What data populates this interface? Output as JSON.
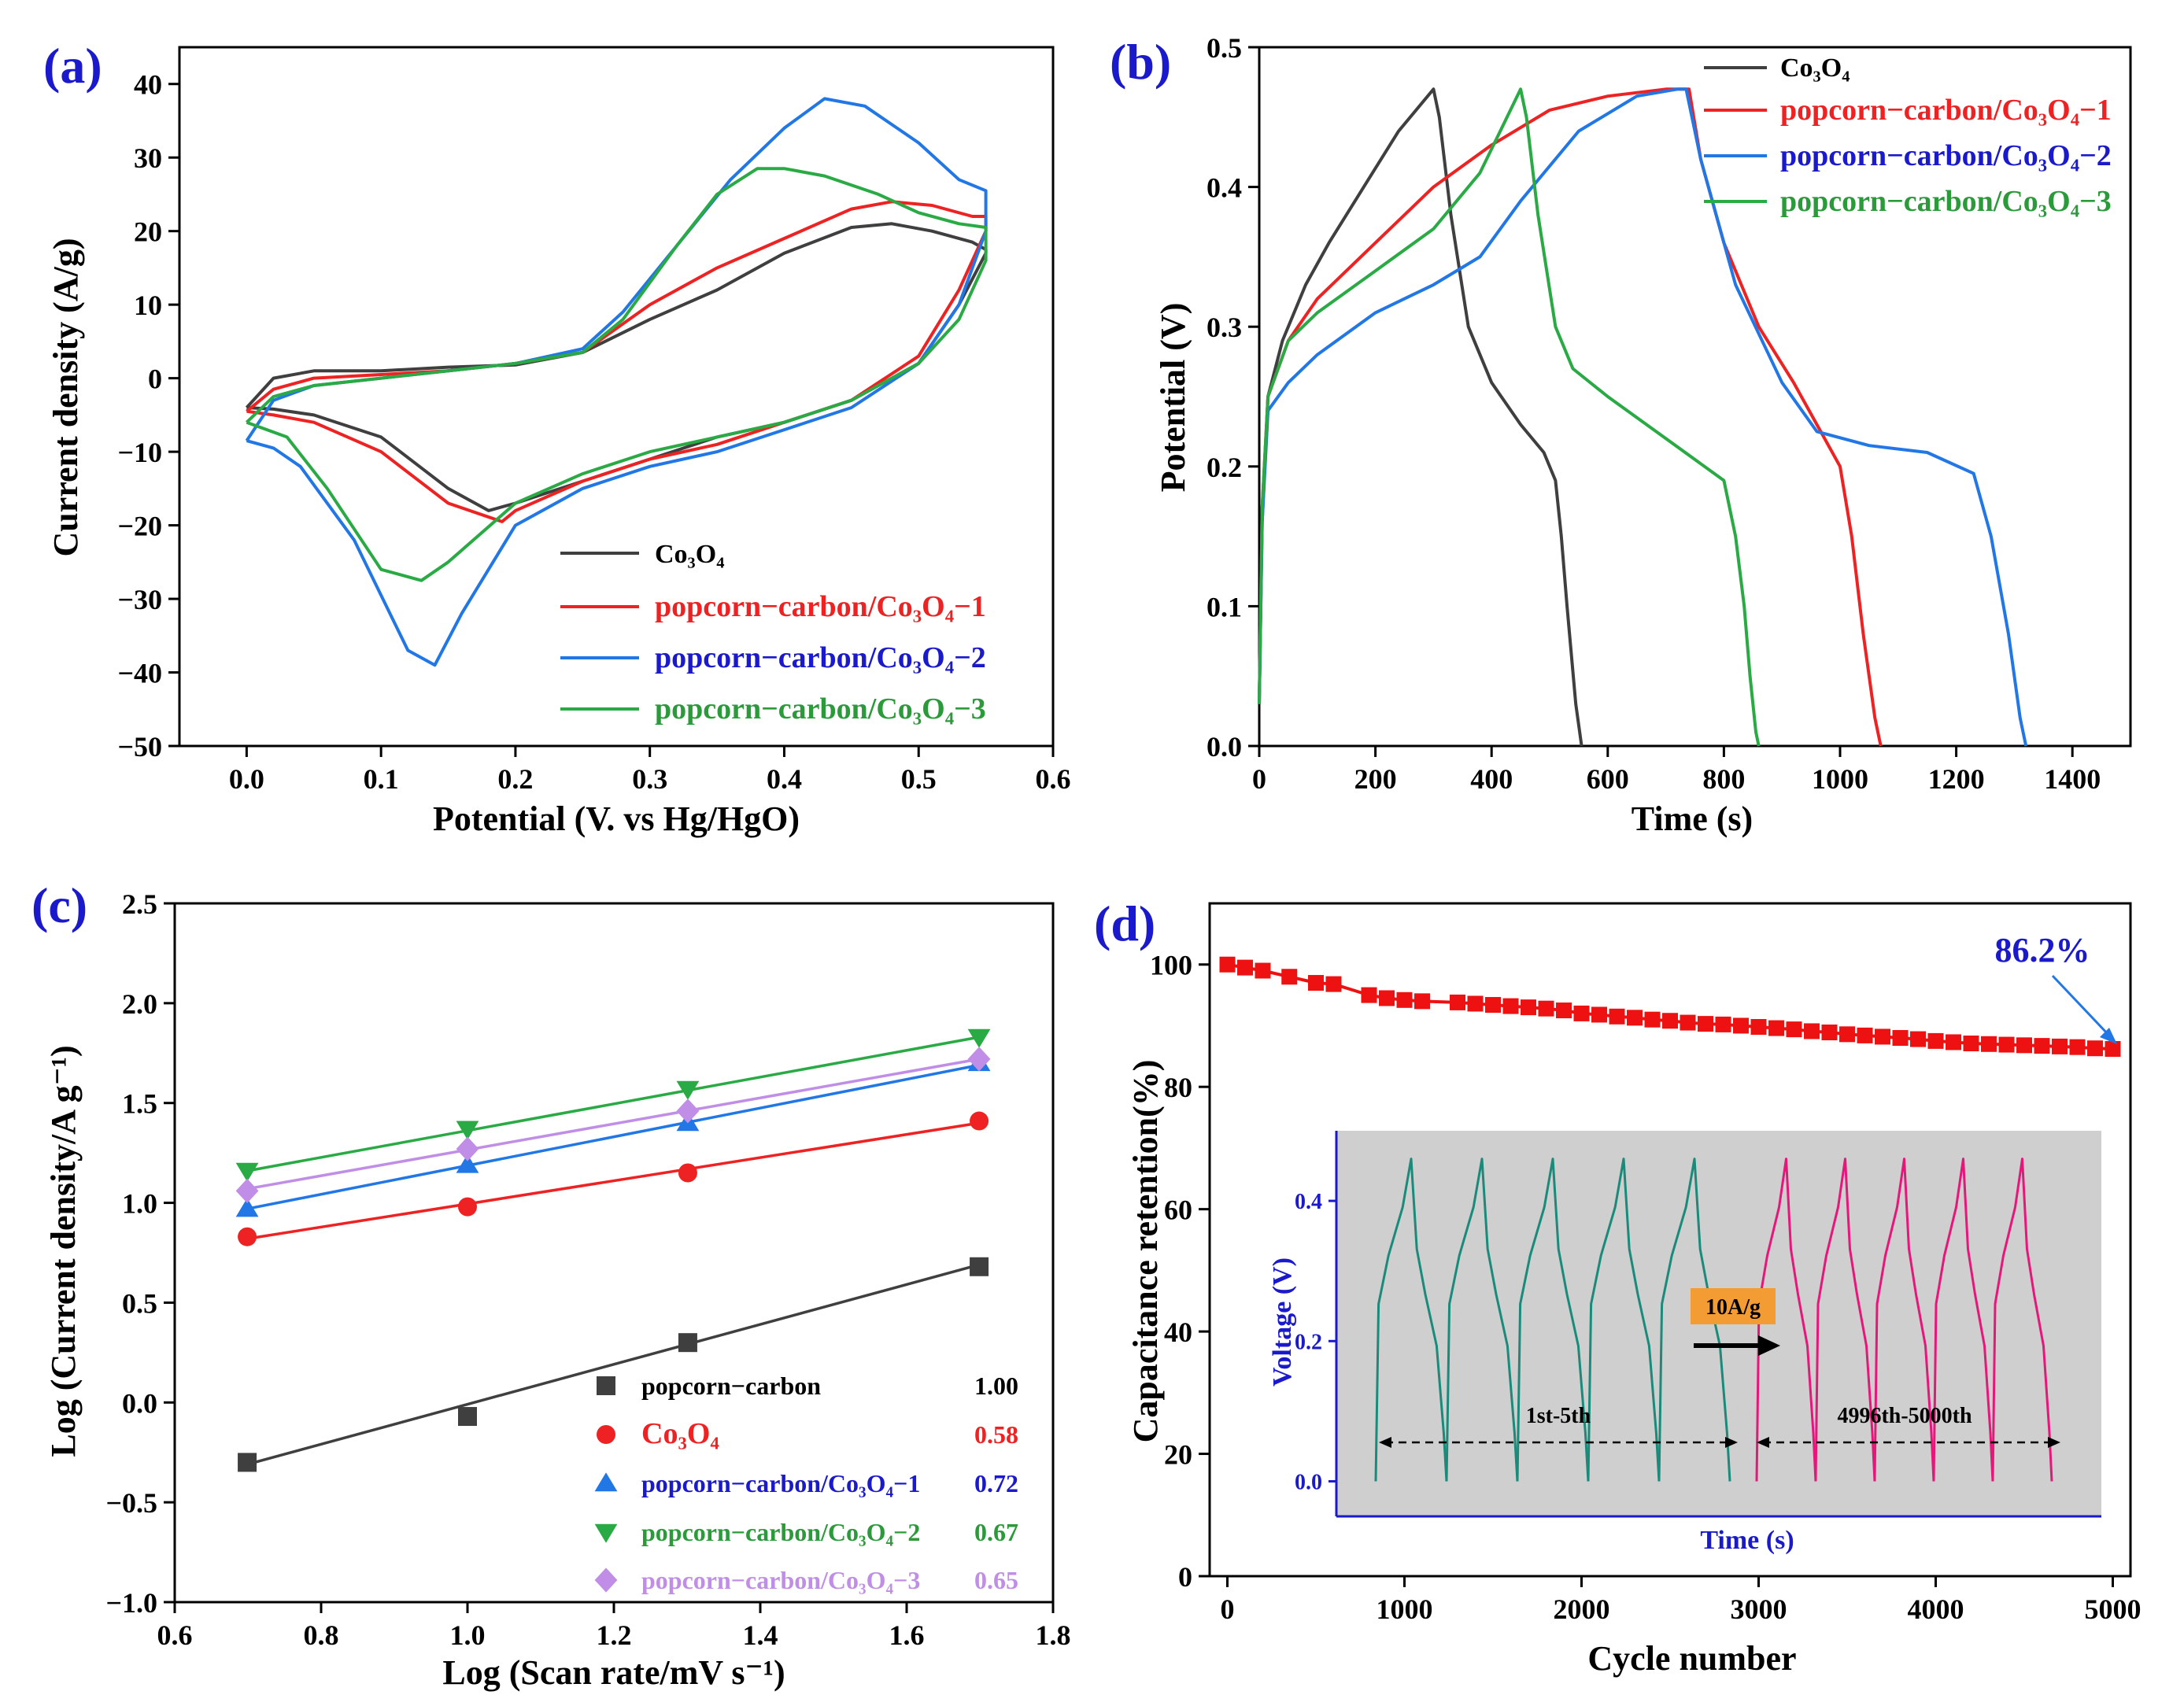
{
  "chart_data": [
    {
      "panel": "(a)",
      "type": "line",
      "xlabel": "Potential (V. vs Hg/HgO)",
      "ylabel": "Current density (A/g)",
      "xlim": [
        -0.05,
        0.6
      ],
      "ylim": [
        -50,
        45
      ],
      "xticks": [
        "0.0",
        "0.1",
        "0.2",
        "0.3",
        "0.4",
        "0.5",
        "0.6"
      ],
      "yticks": [
        "40",
        "30",
        "20",
        "10",
        "0",
        "−10",
        "−20",
        "−30",
        "−40",
        "−50"
      ],
      "legend": [
        {
          "name": "Co₃O₄",
          "color": "#3f3f3f"
        },
        {
          "name": "popcorn−carbon/Co₃O₄−1",
          "color": "#ee2222"
        },
        {
          "name": "popcorn−carbon/Co₃O₄−2",
          "color": "#2277e6"
        },
        {
          "name": "popcorn−carbon/Co₃O₄−3",
          "color": "#2aaa44"
        }
      ],
      "series": [
        {
          "name": "Co₃O₄",
          "color": "#3f3f3f",
          "x": [
            0.0,
            0.02,
            0.05,
            0.1,
            0.15,
            0.2,
            0.25,
            0.3,
            0.35,
            0.4,
            0.45,
            0.48,
            0.51,
            0.54,
            0.55,
            0.55,
            0.53,
            0.5,
            0.45,
            0.4,
            0.35,
            0.3,
            0.25,
            0.2,
            0.18,
            0.15,
            0.1,
            0.05,
            0.02,
            0.0
          ],
          "y": [
            -4,
            0,
            1,
            1,
            1.5,
            1.8,
            3.5,
            8,
            12,
            17,
            20.5,
            21,
            20,
            18.5,
            17.5,
            17,
            10,
            2,
            -3,
            -6,
            -8,
            -11,
            -14,
            -17,
            -18,
            -15,
            -8,
            -5,
            -4.2,
            -4
          ]
        },
        {
          "name": "popcorn−carbon/Co₃O₄−1",
          "color": "#ee2222",
          "x": [
            0.0,
            0.02,
            0.05,
            0.1,
            0.15,
            0.2,
            0.25,
            0.3,
            0.35,
            0.4,
            0.45,
            0.48,
            0.51,
            0.54,
            0.55,
            0.55,
            0.53,
            0.5,
            0.45,
            0.4,
            0.35,
            0.3,
            0.25,
            0.2,
            0.19,
            0.15,
            0.1,
            0.05,
            0.02,
            0.0
          ],
          "y": [
            -4.5,
            -1.5,
            0,
            0.5,
            1,
            2,
            3.5,
            10,
            15,
            19,
            23,
            24,
            23.5,
            22,
            22,
            20,
            12,
            3,
            -3,
            -6,
            -9,
            -11,
            -14,
            -18,
            -19.5,
            -17,
            -10,
            -6,
            -5,
            -4.5
          ]
        },
        {
          "name": "popcorn−carbon/Co₃O₄−2",
          "color": "#2277e6",
          "x": [
            0.0,
            0.02,
            0.05,
            0.1,
            0.15,
            0.2,
            0.25,
            0.28,
            0.32,
            0.36,
            0.4,
            0.43,
            0.46,
            0.5,
            0.53,
            0.55,
            0.55,
            0.53,
            0.5,
            0.45,
            0.4,
            0.35,
            0.3,
            0.25,
            0.2,
            0.16,
            0.14,
            0.12,
            0.08,
            0.04,
            0.02,
            0.0
          ],
          "y": [
            -8.5,
            -3,
            -1,
            0,
            1,
            2,
            4,
            9,
            18,
            27,
            34,
            38,
            37,
            32,
            27,
            25.5,
            20,
            10,
            2,
            -4,
            -7,
            -10,
            -12,
            -15,
            -20,
            -32,
            -39,
            -37,
            -22,
            -12,
            -9.5,
            -8.5
          ]
        },
        {
          "name": "popcorn−carbon/Co₃O₄−3",
          "color": "#2aaa44",
          "x": [
            0.0,
            0.02,
            0.05,
            0.1,
            0.15,
            0.2,
            0.25,
            0.28,
            0.32,
            0.35,
            0.38,
            0.4,
            0.43,
            0.47,
            0.5,
            0.53,
            0.55,
            0.55,
            0.53,
            0.5,
            0.45,
            0.4,
            0.35,
            0.3,
            0.25,
            0.2,
            0.15,
            0.13,
            0.1,
            0.06,
            0.03,
            0.0
          ],
          "y": [
            -6,
            -2.5,
            -1,
            0,
            1,
            2,
            3.5,
            8,
            18,
            25,
            28.5,
            28.5,
            27.5,
            25,
            22.5,
            21,
            20.5,
            16,
            8,
            2,
            -3,
            -6,
            -8,
            -10,
            -13,
            -17,
            -25,
            -27.5,
            -26,
            -15,
            -8,
            -6
          ]
        }
      ]
    },
    {
      "panel": "(b)",
      "type": "line",
      "xlabel": "Time (s)",
      "ylabel": "Potential (V)",
      "xlim": [
        0,
        1500
      ],
      "ylim": [
        0,
        0.5
      ],
      "xticks": [
        "0",
        "200",
        "400",
        "600",
        "800",
        "1000",
        "1200",
        "1400"
      ],
      "yticks": [
        "0.5",
        "0.4",
        "0.3",
        "0.2",
        "0.1",
        "0.0"
      ],
      "legend": [
        {
          "name": "Co₃O₄",
          "color": "#3f3f3f"
        },
        {
          "name": "popcorn−carbon/Co₃O₄−1",
          "color": "#ee2222"
        },
        {
          "name": "popcorn−carbon/Co₃O₄−2",
          "color": "#2277e6"
        },
        {
          "name": "popcorn−carbon/Co₃O₄−3",
          "color": "#2aaa44"
        }
      ],
      "series": [
        {
          "name": "Co₃O₄",
          "color": "#3f3f3f",
          "x": [
            0,
            5,
            15,
            40,
            80,
            120,
            180,
            240,
            300,
            310,
            330,
            360,
            400,
            450,
            490,
            510,
            520,
            530,
            545,
            555
          ],
          "y": [
            0.03,
            0.16,
            0.25,
            0.29,
            0.33,
            0.36,
            0.4,
            0.44,
            0.47,
            0.45,
            0.38,
            0.3,
            0.26,
            0.23,
            0.21,
            0.19,
            0.15,
            0.1,
            0.03,
            0.0
          ]
        },
        {
          "name": "popcorn−carbon/Co₃O₄−1",
          "color": "#ee2222",
          "x": [
            0,
            5,
            15,
            50,
            100,
            200,
            300,
            400,
            500,
            600,
            700,
            740,
            760,
            800,
            860,
            920,
            960,
            1000,
            1020,
            1040,
            1060,
            1070
          ],
          "y": [
            0.03,
            0.17,
            0.25,
            0.29,
            0.32,
            0.36,
            0.4,
            0.43,
            0.455,
            0.465,
            0.47,
            0.47,
            0.42,
            0.36,
            0.3,
            0.26,
            0.23,
            0.2,
            0.15,
            0.08,
            0.02,
            0.0
          ]
        },
        {
          "name": "popcorn−carbon/Co₃O₄−2",
          "color": "#2277e6",
          "x": [
            0,
            5,
            15,
            50,
            100,
            200,
            300,
            380,
            450,
            550,
            650,
            720,
            735,
            760,
            820,
            900,
            960,
            1050,
            1150,
            1230,
            1260,
            1290,
            1310,
            1320
          ],
          "y": [
            0.03,
            0.16,
            0.24,
            0.26,
            0.28,
            0.31,
            0.33,
            0.35,
            0.39,
            0.44,
            0.465,
            0.47,
            0.47,
            0.42,
            0.33,
            0.26,
            0.225,
            0.215,
            0.21,
            0.195,
            0.15,
            0.08,
            0.02,
            0.0
          ]
        },
        {
          "name": "popcorn−carbon/Co₃O₄−3",
          "color": "#2aaa44",
          "x": [
            0,
            5,
            15,
            50,
            100,
            200,
            300,
            380,
            450,
            460,
            480,
            510,
            540,
            600,
            700,
            800,
            820,
            835,
            845,
            855,
            860
          ],
          "y": [
            0.03,
            0.17,
            0.25,
            0.29,
            0.31,
            0.34,
            0.37,
            0.41,
            0.47,
            0.45,
            0.38,
            0.3,
            0.27,
            0.25,
            0.22,
            0.19,
            0.15,
            0.1,
            0.05,
            0.01,
            0.0
          ]
        }
      ]
    },
    {
      "panel": "(c)",
      "type": "scatter",
      "xlabel": "Log (Scan rate/mV s⁻¹)",
      "ylabel": "Log (Current density/A g⁻¹)",
      "xlim": [
        0.6,
        1.8
      ],
      "ylim": [
        -1.0,
        2.5
      ],
      "xticks": [
        "0.6",
        "0.8",
        "1.0",
        "1.2",
        "1.4",
        "1.6",
        "1.8"
      ],
      "yticks": [
        "2.5",
        "2.0",
        "1.5",
        "1.0",
        "0.5",
        "0.0",
        "−0.5",
        "−1.0"
      ],
      "x": [
        0.699,
        1.0,
        1.301,
        1.699
      ],
      "series": [
        {
          "name": "popcorn−carbon",
          "slope": "1.00",
          "color": "#3f3f3f",
          "marker": "square",
          "values": [
            -0.3,
            -0.07,
            0.3,
            0.68
          ],
          "fit": [
            -0.31,
            0.69
          ]
        },
        {
          "name": "Co₃O₄",
          "slope": "0.58",
          "color": "#ee2222",
          "marker": "circle",
          "values": [
            0.83,
            0.98,
            1.15,
            1.41
          ],
          "fit": [
            0.82,
            1.4
          ]
        },
        {
          "name": "popcorn−carbon/Co₃O₄−1",
          "slope": "0.72",
          "color": "#2277e6",
          "marker": "triangle-up",
          "values": [
            0.97,
            1.19,
            1.4,
            1.7
          ],
          "fit": [
            0.97,
            1.69
          ]
        },
        {
          "name": "popcorn−carbon/Co₃O₄−2",
          "slope": "0.67",
          "color": "#2aaa44",
          "marker": "triangle-down",
          "values": [
            1.16,
            1.37,
            1.57,
            1.83
          ],
          "fit": [
            1.16,
            1.83
          ]
        },
        {
          "name": "popcorn−carbon/Co₃O₄−3",
          "slope": "0.65",
          "color": "#c08ee6",
          "marker": "diamond",
          "values": [
            1.06,
            1.27,
            1.46,
            1.72
          ],
          "fit": [
            1.07,
            1.72
          ]
        }
      ]
    },
    {
      "panel": "(d)",
      "type": "line",
      "xlabel": "Cycle number",
      "ylabel": "Capacitance retention(%)",
      "xlim": [
        -100,
        5100
      ],
      "ylim": [
        0,
        110
      ],
      "xticks": [
        "0",
        "1000",
        "2000",
        "3000",
        "4000",
        "5000"
      ],
      "yticks": [
        "100",
        "80",
        "60",
        "40",
        "20",
        "0"
      ],
      "annotation": "86.2%",
      "color": "#ee1111",
      "x": [
        0,
        100,
        200,
        350,
        500,
        600,
        800,
        900,
        1000,
        1100,
        1300,
        1400,
        1500,
        1600,
        1700,
        1800,
        1900,
        2000,
        2100,
        2200,
        2300,
        2400,
        2500,
        2600,
        2700,
        2800,
        2900,
        3000,
        3100,
        3200,
        3300,
        3400,
        3500,
        3600,
        3700,
        3800,
        3900,
        4000,
        4100,
        4200,
        4300,
        4400,
        4500,
        4600,
        4700,
        4800,
        4900,
        5000
      ],
      "values": [
        100,
        99.5,
        99,
        98,
        97,
        96.8,
        95,
        94.5,
        94.2,
        94,
        93.8,
        93.6,
        93.4,
        93.2,
        93,
        92.8,
        92.5,
        92,
        91.8,
        91.5,
        91.3,
        91,
        90.8,
        90.5,
        90.3,
        90.2,
        90,
        89.8,
        89.6,
        89.4,
        89.1,
        88.9,
        88.6,
        88.4,
        88.2,
        88,
        87.8,
        87.5,
        87.3,
        87.1,
        87,
        86.9,
        86.8,
        86.7,
        86.6,
        86.5,
        86.3,
        86.2
      ],
      "inset": {
        "xlabel": "Time (s)",
        "ylabel": "Voltage (V)",
        "ylim": [
          -0.05,
          0.5
        ],
        "yticks": [
          "0.4",
          "0.2",
          "0.0"
        ],
        "first_label": "1st-5th",
        "last_label": "4996th-5000th",
        "rate_label": "10A/g",
        "first_color": "#1a8a7a",
        "last_color": "#e6177a",
        "background": "#cfcfcf",
        "vmax": 0.46,
        "vmin": 0.0
      }
    }
  ]
}
